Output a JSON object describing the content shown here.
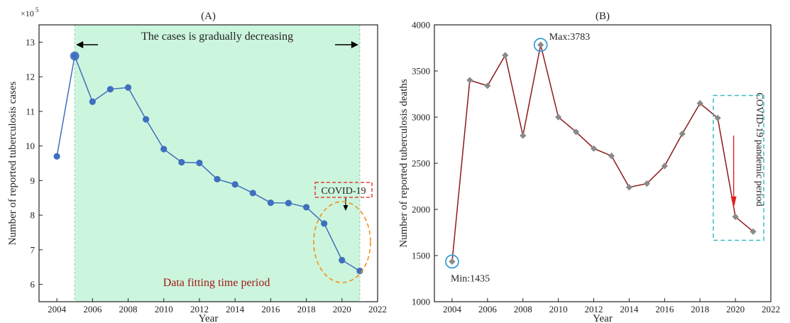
{
  "chart_data": [
    {
      "panel": "(A)",
      "type": "line",
      "xlabel": "Year",
      "ylabel": "Number of reported tuberculosis cases",
      "y_multiplier": "×10",
      "y_multiplier_exp": "5",
      "xlim": [
        2003,
        2022
      ],
      "ylim": [
        5.5,
        13.5
      ],
      "x_ticks": [
        2004,
        2006,
        2008,
        2010,
        2012,
        2014,
        2016,
        2018,
        2020,
        2022
      ],
      "y_ticks": [
        6,
        7,
        8,
        9,
        10,
        11,
        12,
        13
      ],
      "grid": false,
      "x": [
        2004,
        2005,
        2006,
        2007,
        2008,
        2009,
        2010,
        2011,
        2012,
        2013,
        2014,
        2015,
        2016,
        2017,
        2018,
        2019,
        2020,
        2021
      ],
      "values": [
        9.7,
        12.6,
        11.28,
        11.64,
        11.69,
        10.77,
        9.91,
        9.53,
        9.51,
        9.04,
        8.89,
        8.64,
        8.36,
        8.35,
        8.23,
        7.76,
        6.7,
        6.39
      ],
      "line_color": "#3f6fbf",
      "marker_color": "#3f6fbf",
      "highlight_color": "#ccf5dd",
      "highlight_range": [
        2005,
        2021
      ],
      "annotations": {
        "trend": "The cases is gradually decreasing",
        "fit_period": "Data fitting time period",
        "covid": "COVID-19"
      }
    },
    {
      "panel": "(B)",
      "type": "line",
      "xlabel": "Year",
      "ylabel": "Number of reported tuberculosis deaths",
      "xlim": [
        2003,
        2022
      ],
      "ylim": [
        1000,
        4000
      ],
      "x_ticks": [
        2004,
        2006,
        2008,
        2010,
        2012,
        2014,
        2016,
        2018,
        2020,
        2022
      ],
      "y_ticks": [
        1000,
        1500,
        2000,
        2500,
        3000,
        3500,
        4000
      ],
      "grid": false,
      "x": [
        2004,
        2005,
        2006,
        2007,
        2008,
        2009,
        2010,
        2011,
        2012,
        2013,
        2014,
        2015,
        2016,
        2017,
        2018,
        2019,
        2020,
        2021
      ],
      "values": [
        1435,
        3400,
        3340,
        3670,
        2800,
        3783,
        3000,
        2840,
        2660,
        2580,
        2240,
        2280,
        2470,
        2820,
        3150,
        2990,
        1920,
        1760
      ],
      "line_color": "#8b1a1a",
      "marker_color": "#8a8a8a",
      "annotations": {
        "max": "Max:3783",
        "min": "Min:1435",
        "covid_period": "COVID-19 pandemic period"
      }
    }
  ]
}
